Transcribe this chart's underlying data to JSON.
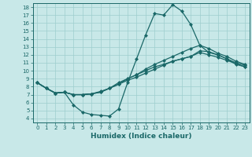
{
  "title": "",
  "xlabel": "Humidex (Indice chaleur)",
  "background_color": "#c8e8e8",
  "line_color": "#1a6868",
  "xlim": [
    -0.5,
    23.5
  ],
  "ylim": [
    3.5,
    18.5
  ],
  "xticks": [
    0,
    1,
    2,
    3,
    4,
    5,
    6,
    7,
    8,
    9,
    10,
    11,
    12,
    13,
    14,
    15,
    16,
    17,
    18,
    19,
    20,
    21,
    22,
    23
  ],
  "yticks": [
    4,
    5,
    6,
    7,
    8,
    9,
    10,
    11,
    12,
    13,
    14,
    15,
    16,
    17,
    18
  ],
  "lines": [
    {
      "x": [
        0,
        1,
        2,
        3,
        4,
        5,
        6,
        7,
        8,
        9,
        10,
        11,
        12,
        13,
        14,
        15,
        16,
        17,
        18,
        19,
        20,
        21,
        22,
        23
      ],
      "y": [
        8.5,
        7.8,
        7.2,
        7.3,
        5.7,
        4.8,
        4.5,
        4.4,
        4.3,
        5.2,
        8.5,
        11.5,
        14.5,
        17.2,
        17.0,
        18.3,
        17.5,
        15.8,
        13.2,
        12.3,
        12.0,
        11.5,
        10.8,
        10.5
      ]
    },
    {
      "x": [
        0,
        1,
        2,
        3,
        4,
        5,
        6,
        7,
        8,
        9,
        10,
        11,
        12,
        13,
        14,
        15,
        16,
        17,
        18,
        19,
        20,
        21,
        22,
        23
      ],
      "y": [
        8.5,
        7.8,
        7.2,
        7.3,
        7.0,
        7.0,
        7.1,
        7.3,
        7.8,
        8.3,
        9.0,
        9.5,
        10.2,
        10.8,
        11.3,
        11.8,
        12.3,
        12.8,
        13.2,
        12.8,
        12.2,
        11.8,
        11.2,
        10.8
      ]
    },
    {
      "x": [
        0,
        1,
        2,
        3,
        4,
        5,
        6,
        7,
        8,
        9,
        10,
        11,
        12,
        13,
        14,
        15,
        16,
        17,
        18,
        19,
        20,
        21,
        22,
        23
      ],
      "y": [
        8.5,
        7.8,
        7.2,
        7.3,
        7.0,
        7.0,
        7.1,
        7.3,
        7.8,
        8.3,
        8.8,
        9.2,
        9.7,
        10.2,
        10.7,
        11.2,
        11.5,
        11.8,
        12.5,
        12.4,
        12.0,
        11.5,
        11.0,
        10.7
      ]
    },
    {
      "x": [
        0,
        1,
        2,
        3,
        4,
        5,
        6,
        7,
        8,
        9,
        10,
        11,
        12,
        13,
        14,
        15,
        16,
        17,
        18,
        19,
        20,
        21,
        22,
        23
      ],
      "y": [
        8.5,
        7.8,
        7.2,
        7.3,
        7.0,
        7.0,
        7.1,
        7.4,
        7.8,
        8.5,
        9.0,
        9.5,
        10.0,
        10.5,
        10.8,
        11.2,
        11.5,
        11.8,
        12.3,
        12.0,
        11.7,
        11.3,
        10.9,
        10.5
      ]
    }
  ],
  "grid_color": "#9ecece",
  "marker": "D",
  "marker_size": 2.0,
  "line_width": 0.9,
  "tick_fontsize": 5.0,
  "xlabel_fontsize": 6.5
}
